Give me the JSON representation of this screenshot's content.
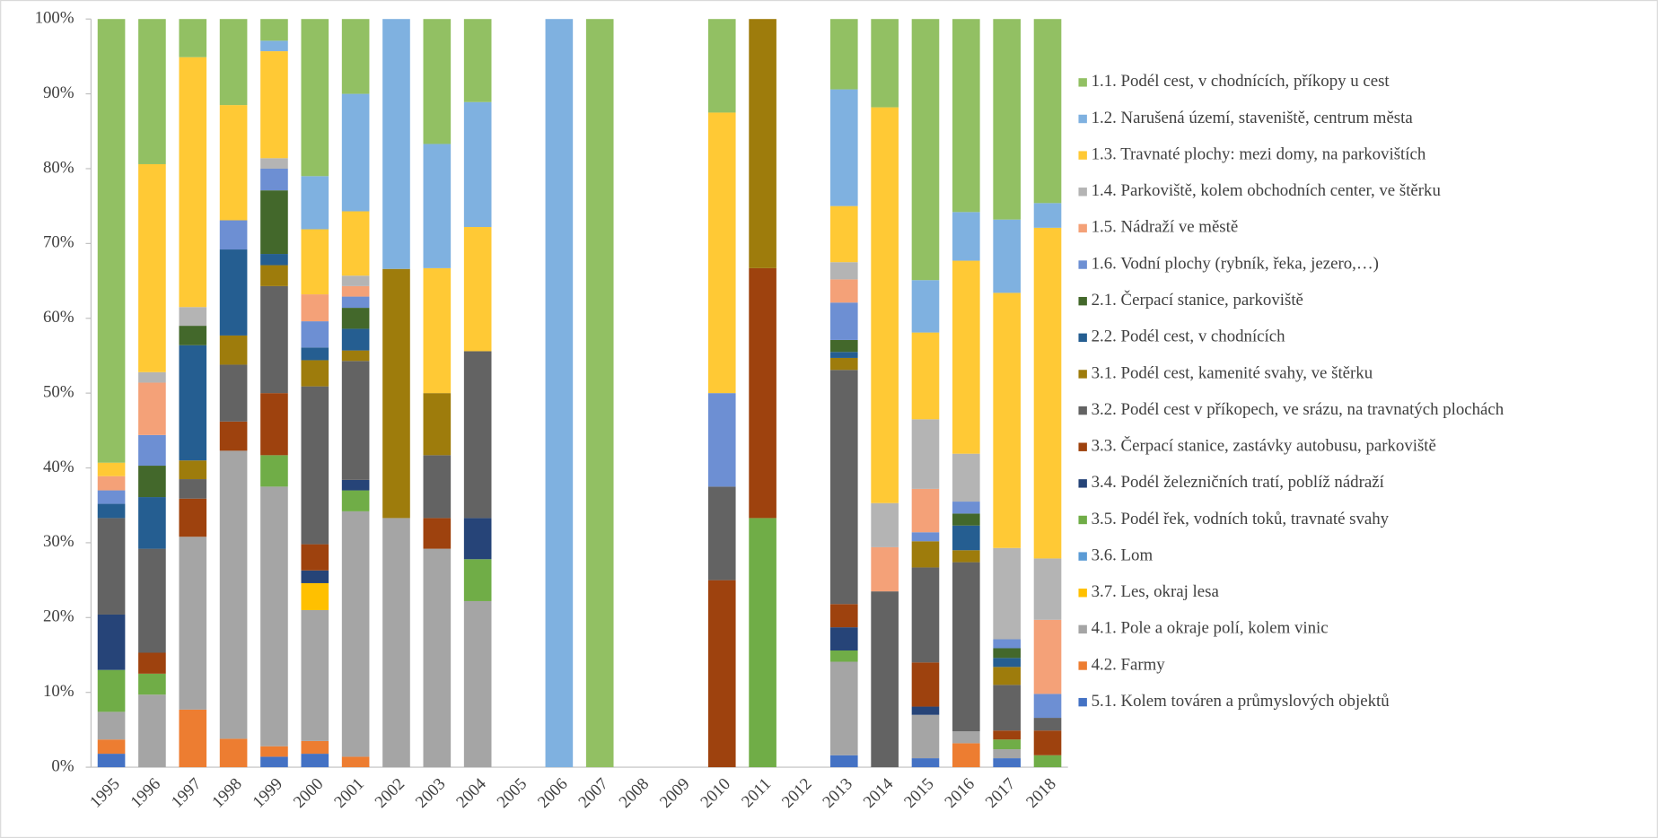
{
  "chart_data": {
    "type": "stacked_bar_percent",
    "categories": [
      "1995",
      "1996",
      "1997",
      "1998",
      "1999",
      "2000",
      "2001",
      "2002",
      "2003",
      "2004",
      "2005",
      "2006",
      "2007",
      "2008",
      "2009",
      "2010",
      "2011",
      "2012",
      "2013",
      "2014",
      "2015",
      "2016",
      "2017",
      "2018"
    ],
    "ylim": [
      0,
      100
    ],
    "yticks": [
      {
        "value": 0,
        "label": "0%"
      },
      {
        "value": 10,
        "label": "10%"
      },
      {
        "value": 20,
        "label": "20%"
      },
      {
        "value": 30,
        "label": "30%"
      },
      {
        "value": 40,
        "label": "40%"
      },
      {
        "value": 50,
        "label": "50%"
      },
      {
        "value": 60,
        "label": "60%"
      },
      {
        "value": 70,
        "label": "70%"
      },
      {
        "value": 80,
        "label": "80%"
      },
      {
        "value": 90,
        "label": "90%"
      },
      {
        "value": 100,
        "label": "100%"
      }
    ],
    "grid": false,
    "legend": "right",
    "series": [
      {
        "name": "1.1.  Podél cest, v chodnících, příkopy u cest",
        "color": "#92c063",
        "values": [
          59.3,
          19.4,
          5.1,
          11.5,
          2.9,
          21,
          10,
          null,
          16.7,
          11.1,
          null,
          null,
          100,
          null,
          null,
          12.5,
          null,
          null,
          9.4,
          11.8,
          34.9,
          25.8,
          26.8,
          24.6
        ]
      },
      {
        "name": "1.2.  Narušená území, staveniště, centrum města",
        "color": "#7fb1e0",
        "values": [
          null,
          null,
          null,
          null,
          1.4,
          7.1,
          15.7,
          33.4,
          16.6,
          16.7,
          null,
          100,
          null,
          null,
          null,
          null,
          null,
          null,
          15.6,
          null,
          7,
          6.5,
          9.8,
          3.3
        ]
      },
      {
        "name": "1.3.  Travnaté plochy: mezi domy, na parkovištích",
        "color": "#ffc935",
        "values": [
          1.8,
          27.8,
          33.4,
          15.4,
          14.3,
          8.7,
          8.6,
          null,
          16.7,
          16.6,
          null,
          null,
          null,
          null,
          null,
          37.5,
          null,
          null,
          7.5,
          52.9,
          11.6,
          25.8,
          34.1,
          44.2
        ]
      },
      {
        "name": "1.4.  Parkoviště, kolem obchodních center, ve štěrku",
        "color": "#b4b4b4",
        "values": [
          null,
          1.4,
          2.5,
          null,
          1.4,
          null,
          1.4,
          null,
          null,
          null,
          null,
          null,
          null,
          null,
          null,
          null,
          null,
          null,
          2.3,
          5.9,
          9.3,
          6.4,
          12.2,
          8.2
        ]
      },
      {
        "name": "1.5.  Nádraží ve městě",
        "color": "#f4a178",
        "values": [
          1.9,
          7,
          null,
          null,
          null,
          3.6,
          1.4,
          null,
          null,
          null,
          null,
          null,
          null,
          null,
          null,
          null,
          null,
          null,
          3.1,
          5.9,
          5.8,
          null,
          null,
          9.9
        ]
      },
      {
        "name": "1.6.  Vodní plochy (rybník, řeka, jezero,…)",
        "color": "#6d8fd3",
        "values": [
          1.8,
          4.1,
          null,
          3.9,
          2.9,
          3.5,
          1.5,
          null,
          null,
          null,
          null,
          null,
          null,
          null,
          null,
          12.5,
          null,
          null,
          5,
          null,
          1.2,
          1.6,
          1.2,
          3.2
        ]
      },
      {
        "name": "2.1.  Čerpací stanice, parkoviště",
        "color": "#43682b",
        "values": [
          null,
          4.2,
          2.6,
          null,
          8.5,
          null,
          2.8,
          null,
          null,
          null,
          null,
          null,
          null,
          null,
          null,
          null,
          null,
          null,
          1.6,
          null,
          null,
          1.6,
          1.3,
          null
        ]
      },
      {
        "name": "2.2.  Podél cest, v chodnících",
        "color": "#255e91",
        "values": [
          1.9,
          6.9,
          15.4,
          11.5,
          1.5,
          1.7,
          2.9,
          null,
          null,
          null,
          null,
          null,
          null,
          null,
          null,
          null,
          null,
          null,
          0.8,
          null,
          null,
          3.3,
          1.2,
          null
        ]
      },
      {
        "name": "3.1.  Podél cest, kamenité svahy, ve štěrku",
        "color": "#9e7c0c",
        "values": [
          null,
          null,
          2.5,
          3.9,
          2.8,
          3.5,
          1.4,
          33.3,
          8.3,
          null,
          null,
          null,
          null,
          null,
          null,
          null,
          33.3,
          null,
          1.6,
          null,
          3.5,
          1.6,
          2.4,
          null
        ]
      },
      {
        "name": "3.2.  Podél cest v příkopech, ve srázu, na travnatých plochách",
        "color": "#636363",
        "values": [
          12.9,
          13.9,
          2.6,
          7.6,
          14.3,
          21.1,
          15.9,
          null,
          8.4,
          22.3,
          null,
          null,
          null,
          null,
          null,
          12.5,
          null,
          null,
          31.3,
          23.5,
          12.7,
          22.6,
          6.1,
          1.7
        ]
      },
      {
        "name": "3.3.  Čerpací stanice, zastávky autobusu, parkoviště",
        "color": "#9e420e",
        "values": [
          null,
          2.8,
          5.1,
          3.9,
          8.3,
          3.5,
          null,
          null,
          4.1,
          null,
          null,
          null,
          null,
          null,
          null,
          25,
          33.4,
          null,
          3.1,
          null,
          5.9,
          null,
          1.2,
          3.3
        ]
      },
      {
        "name": "3.4.  Podél železničních tratí, poblíž nádraží",
        "color": "#264478",
        "values": [
          7.4,
          null,
          null,
          null,
          null,
          1.7,
          1.4,
          null,
          null,
          5.5,
          null,
          null,
          null,
          null,
          null,
          null,
          null,
          null,
          3.1,
          null,
          1.1,
          null,
          null,
          null
        ]
      },
      {
        "name": "3.5.  Podél řek, vodních toků, travnaté svahy",
        "color": "#70ad47",
        "values": [
          5.6,
          2.8,
          null,
          null,
          4.2,
          null,
          2.8,
          null,
          null,
          5.6,
          null,
          null,
          null,
          null,
          null,
          null,
          33.3,
          null,
          1.5,
          null,
          null,
          null,
          1.3,
          1.6
        ]
      },
      {
        "name": "3.6.  Lom",
        "color": "#5b9bd5",
        "values": [
          null,
          null,
          null,
          null,
          null,
          null,
          null,
          null,
          null,
          null,
          null,
          null,
          null,
          null,
          null,
          null,
          null,
          null,
          null,
          null,
          null,
          null,
          null,
          null
        ]
      },
      {
        "name": "3.7.  Les, okraj lesa",
        "color": "#ffc000",
        "values": [
          null,
          null,
          null,
          null,
          null,
          3.6,
          null,
          null,
          null,
          null,
          null,
          null,
          null,
          null,
          null,
          null,
          null,
          null,
          null,
          null,
          null,
          null,
          null,
          null
        ]
      },
      {
        "name": "4.1.  Pole a okraje polí, kolem vinic",
        "color": "#a5a5a5",
        "values": [
          3.7,
          9.7,
          23.1,
          38.5,
          34.7,
          17.5,
          32.8,
          33.3,
          29.2,
          22.2,
          null,
          null,
          null,
          null,
          null,
          null,
          null,
          null,
          12.5,
          null,
          5.8,
          1.6,
          1.2,
          null
        ]
      },
      {
        "name": "4.2.  Farmy",
        "color": "#ed7d31",
        "values": [
          1.9,
          null,
          7.7,
          3.8,
          1.4,
          1.7,
          1.4,
          null,
          null,
          null,
          null,
          null,
          null,
          null,
          null,
          null,
          null,
          null,
          null,
          null,
          null,
          3.2,
          null,
          null
        ]
      },
      {
        "name": "5.1.  Kolem továren a průmyslových objektů",
        "color": "#4472c4",
        "values": [
          1.8,
          null,
          null,
          null,
          1.4,
          1.8,
          null,
          null,
          null,
          null,
          null,
          null,
          null,
          null,
          null,
          null,
          null,
          null,
          1.6,
          null,
          1.2,
          null,
          1.2,
          null
        ]
      }
    ]
  }
}
